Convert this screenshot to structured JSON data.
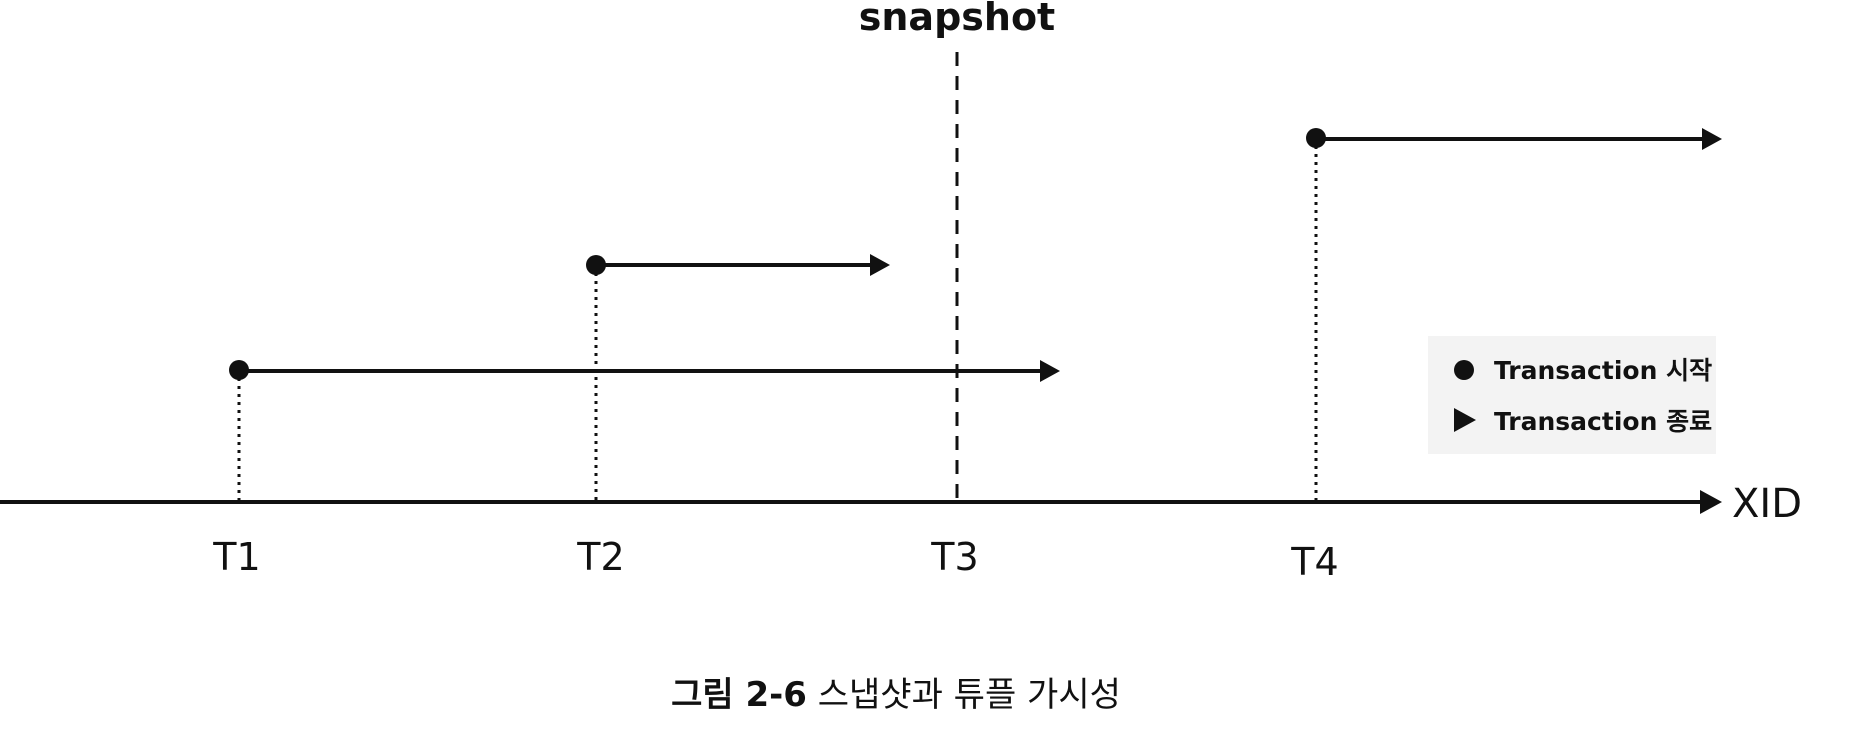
{
  "snapshot_label": "snapshot",
  "axis_label": "XID",
  "ticks": [
    "T1",
    "T2",
    "T3",
    "T4"
  ],
  "transactions": [
    {
      "id": "T1",
      "start": "T1",
      "end": "snapshot-after"
    },
    {
      "id": "T2",
      "start": "T2",
      "end": "snapshot-before"
    },
    {
      "id": "T4",
      "start": "T4",
      "end": "ongoing"
    }
  ],
  "legend": {
    "start_label": "Transaction 시작",
    "end_label": "Transaction 종료"
  },
  "caption": {
    "number": "그림 2-6",
    "title": "스냅샷과 튜플 가시성"
  }
}
